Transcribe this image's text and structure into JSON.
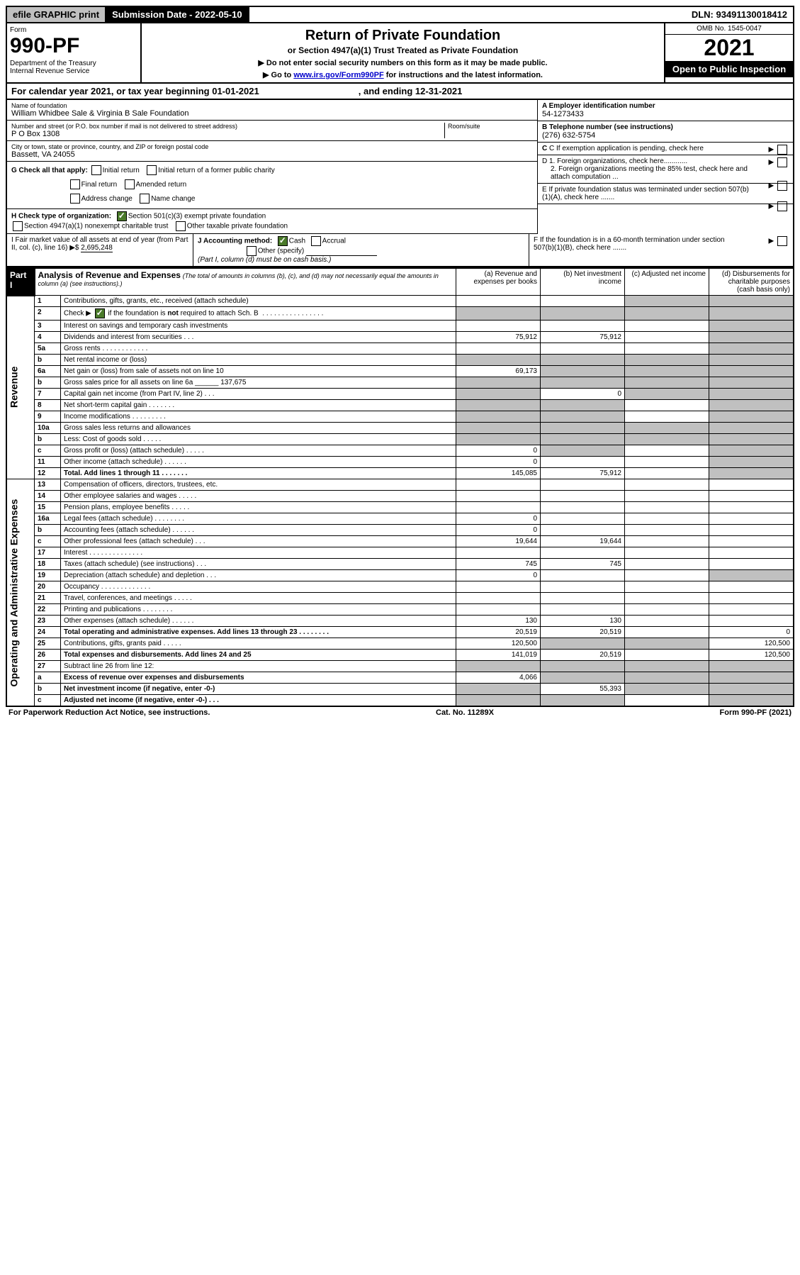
{
  "topbar": {
    "efile": "efile GRAPHIC print",
    "submission": "Submission Date - 2022-05-10",
    "dln": "DLN: 93491130018412"
  },
  "header": {
    "form_label": "Form",
    "form_no": "990-PF",
    "dept": "Department of the Treasury\nInternal Revenue Service",
    "title": "Return of Private Foundation",
    "subtitle": "or Section 4947(a)(1) Trust Treated as Private Foundation",
    "note1": "▶ Do not enter social security numbers on this form as it may be made public.",
    "note2_pre": "▶ Go to ",
    "note2_link": "www.irs.gov/Form990PF",
    "note2_post": " for instructions and the latest information.",
    "omb": "OMB No. 1545-0047",
    "year": "2021",
    "open": "Open to Public Inspection"
  },
  "calyear": {
    "label_a": "For calendar year 2021, or tax year beginning 01-01-2021",
    "label_b": ", and ending 12-31-2021"
  },
  "info": {
    "name_label": "Name of foundation",
    "name": "William Whidbee Sale & Virginia B Sale Foundation",
    "addr_label": "Number and street (or P.O. box number if mail is not delivered to street address)",
    "addr": "P O Box 1308",
    "room_label": "Room/suite",
    "city_label": "City or town, state or province, country, and ZIP or foreign postal code",
    "city": "Bassett, VA  24055",
    "a_label": "A Employer identification number",
    "a_val": "54-1273433",
    "b_label": "B Telephone number (see instructions)",
    "b_val": "(276) 632-5754",
    "c_label": "C If exemption application is pending, check here",
    "d1": "D 1. Foreign organizations, check here............",
    "d2": "2. Foreign organizations meeting the 85% test, check here and attach computation ...",
    "e": "E  If private foundation status was terminated under section 507(b)(1)(A), check here .......",
    "f": "F  If the foundation is in a 60-month termination under section 507(b)(1)(B), check here .......",
    "g_label": "G Check all that apply:",
    "g_opts": [
      "Initial return",
      "Initial return of a former public charity",
      "Final return",
      "Amended return",
      "Address change",
      "Name change"
    ],
    "h_label": "H Check type of organization:",
    "h_opt1": "Section 501(c)(3) exempt private foundation",
    "h_opt2": "Section 4947(a)(1) nonexempt charitable trust",
    "h_opt3": "Other taxable private foundation",
    "i_label": "I Fair market value of all assets at end of year (from Part II, col. (c), line 16) ▶$ ",
    "i_val": "2,695,248",
    "j_label": "J Accounting method:",
    "j_cash": "Cash",
    "j_accrual": "Accrual",
    "j_other": "Other (specify)",
    "j_note": "(Part I, column (d) must be on cash basis.)"
  },
  "part1": {
    "label": "Part I",
    "title": "Analysis of Revenue and Expenses",
    "title_note": "(The total of amounts in columns (b), (c), and (d) may not necessarily equal the amounts in column (a) (see instructions).)",
    "col_a": "(a) Revenue and expenses per books",
    "col_b": "(b) Net investment income",
    "col_c": "(c) Adjusted net income",
    "col_d": "(d) Disbursements for charitable purposes (cash basis only)"
  },
  "sections": {
    "revenue": "Revenue",
    "expenses": "Operating and Administrative Expenses"
  },
  "rows": [
    {
      "n": "1",
      "d": "Contributions, gifts, grants, etc., received (attach schedule)",
      "a": "",
      "b": "",
      "c": "",
      "dd": "",
      "ga": false,
      "gc": true,
      "gd": true
    },
    {
      "n": "2",
      "d": "Check ▶ ☑ if the foundation is not required to attach Sch. B  . . . . . . . . . . . . . . . .",
      "a": "",
      "b": "",
      "c": "",
      "dd": "",
      "ga": true,
      "gb": true,
      "gc": true,
      "gd": true,
      "bold": false,
      "chk": true
    },
    {
      "n": "3",
      "d": "Interest on savings and temporary cash investments",
      "a": "",
      "b": "",
      "c": "",
      "dd": "",
      "gd": true
    },
    {
      "n": "4",
      "d": "Dividends and interest from securities  . . .",
      "a": "75,912",
      "b": "75,912",
      "c": "",
      "dd": "",
      "gd": true
    },
    {
      "n": "5a",
      "d": "Gross rents  . . . . . . . . . . . .",
      "a": "",
      "b": "",
      "c": "",
      "dd": "",
      "gd": true
    },
    {
      "n": "b",
      "d": "Net rental income or (loss)  ",
      "a": "",
      "b": "",
      "c": "",
      "dd": "",
      "ga": true,
      "gb": true,
      "gc": true,
      "gd": true
    },
    {
      "n": "6a",
      "d": "Net gain or (loss) from sale of assets not on line 10",
      "a": "69,173",
      "b": "",
      "c": "",
      "dd": "",
      "gb": true,
      "gc": true,
      "gd": true
    },
    {
      "n": "b",
      "d": "Gross sales price for all assets on line 6a ______ 137,675",
      "a": "",
      "b": "",
      "c": "",
      "dd": "",
      "ga": true,
      "gb": true,
      "gc": true,
      "gd": true
    },
    {
      "n": "7",
      "d": "Capital gain net income (from Part IV, line 2)  . . .",
      "a": "",
      "b": "0",
      "c": "",
      "dd": "",
      "ga": true,
      "gc": true,
      "gd": true
    },
    {
      "n": "8",
      "d": "Net short-term capital gain  . . . . . . .",
      "a": "",
      "b": "",
      "c": "",
      "dd": "",
      "ga": true,
      "gb": true,
      "gd": true
    },
    {
      "n": "9",
      "d": "Income modifications  . . . . . . . . .",
      "a": "",
      "b": "",
      "c": "",
      "dd": "",
      "ga": true,
      "gb": true,
      "gd": true
    },
    {
      "n": "10a",
      "d": "Gross sales less returns and allowances",
      "a": "",
      "b": "",
      "c": "",
      "dd": "",
      "ga": true,
      "gb": true,
      "gc": true,
      "gd": true
    },
    {
      "n": "b",
      "d": "Less: Cost of goods sold  . . . . .",
      "a": "",
      "b": "",
      "c": "",
      "dd": "",
      "ga": true,
      "gb": true,
      "gc": true,
      "gd": true
    },
    {
      "n": "c",
      "d": "Gross profit or (loss) (attach schedule)  . . . . .",
      "a": "0",
      "b": "",
      "c": "",
      "dd": "",
      "gb": true,
      "gd": true
    },
    {
      "n": "11",
      "d": "Other income (attach schedule)  . . . . . .",
      "a": "0",
      "b": "",
      "c": "",
      "dd": "",
      "gd": true
    },
    {
      "n": "12",
      "d": "Total. Add lines 1 through 11  . . . . . . .",
      "a": "145,085",
      "b": "75,912",
      "c": "",
      "dd": "",
      "gd": true,
      "bold": true
    },
    {
      "n": "13",
      "d": "Compensation of officers, directors, trustees, etc.",
      "a": "",
      "b": "",
      "c": "",
      "dd": ""
    },
    {
      "n": "14",
      "d": "Other employee salaries and wages  . . . . .",
      "a": "",
      "b": "",
      "c": "",
      "dd": ""
    },
    {
      "n": "15",
      "d": "Pension plans, employee benefits  . . . . .",
      "a": "",
      "b": "",
      "c": "",
      "dd": ""
    },
    {
      "n": "16a",
      "d": "Legal fees (attach schedule)  . . . . . . . .",
      "a": "0",
      "b": "",
      "c": "",
      "dd": ""
    },
    {
      "n": "b",
      "d": "Accounting fees (attach schedule)  . . . . . .",
      "a": "0",
      "b": "",
      "c": "",
      "dd": ""
    },
    {
      "n": "c",
      "d": "Other professional fees (attach schedule)  . . .",
      "a": "19,644",
      "b": "19,644",
      "c": "",
      "dd": ""
    },
    {
      "n": "17",
      "d": "Interest  . . . . . . . . . . . . . .",
      "a": "",
      "b": "",
      "c": "",
      "dd": ""
    },
    {
      "n": "18",
      "d": "Taxes (attach schedule) (see instructions)  . . .",
      "a": "745",
      "b": "745",
      "c": "",
      "dd": ""
    },
    {
      "n": "19",
      "d": "Depreciation (attach schedule) and depletion  . . .",
      "a": "0",
      "b": "",
      "c": "",
      "dd": "",
      "gd": true
    },
    {
      "n": "20",
      "d": "Occupancy  . . . . . . . . . . . . .",
      "a": "",
      "b": "",
      "c": "",
      "dd": ""
    },
    {
      "n": "21",
      "d": "Travel, conferences, and meetings  . . . . .",
      "a": "",
      "b": "",
      "c": "",
      "dd": ""
    },
    {
      "n": "22",
      "d": "Printing and publications  . . . . . . . .",
      "a": "",
      "b": "",
      "c": "",
      "dd": ""
    },
    {
      "n": "23",
      "d": "Other expenses (attach schedule)  . . . . . .",
      "a": "130",
      "b": "130",
      "c": "",
      "dd": ""
    },
    {
      "n": "24",
      "d": "Total operating and administrative expenses. Add lines 13 through 23  . . . . . . . .",
      "a": "20,519",
      "b": "20,519",
      "c": "",
      "dd": "0",
      "bold": true
    },
    {
      "n": "25",
      "d": "Contributions, gifts, grants paid  . . . . .",
      "a": "120,500",
      "b": "",
      "c": "",
      "dd": "120,500",
      "gb": true,
      "gc": true
    },
    {
      "n": "26",
      "d": "Total expenses and disbursements. Add lines 24 and 25",
      "a": "141,019",
      "b": "20,519",
      "c": "",
      "dd": "120,500",
      "bold": true
    },
    {
      "n": "27",
      "d": "Subtract line 26 from line 12:",
      "a": "",
      "b": "",
      "c": "",
      "dd": "",
      "ga": true,
      "gb": true,
      "gc": true,
      "gd": true
    },
    {
      "n": "a",
      "d": "Excess of revenue over expenses and disbursements",
      "a": "4,066",
      "b": "",
      "c": "",
      "dd": "",
      "gb": true,
      "gc": true,
      "gd": true,
      "bold": true
    },
    {
      "n": "b",
      "d": "Net investment income (if negative, enter -0-)",
      "a": "",
      "b": "55,393",
      "c": "",
      "dd": "",
      "ga": true,
      "gc": true,
      "gd": true,
      "bold": true
    },
    {
      "n": "c",
      "d": "Adjusted net income (if negative, enter -0-)  . . .",
      "a": "",
      "b": "",
      "c": "",
      "dd": "",
      "ga": true,
      "gb": true,
      "gd": true,
      "bold": true
    }
  ],
  "footer": {
    "left": "For Paperwork Reduction Act Notice, see instructions.",
    "mid": "Cat. No. 11289X",
    "right": "Form 990-PF (2021)"
  }
}
